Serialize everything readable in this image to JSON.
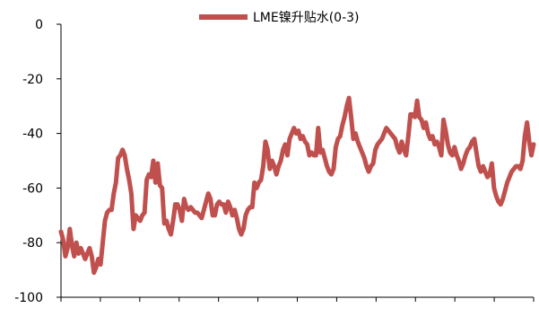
{
  "chart_data": {
    "type": "line",
    "title": "",
    "xlabel": "",
    "ylabel": "",
    "ylim": [
      -100,
      0
    ],
    "yticks": [
      0,
      -20,
      -40,
      -60,
      -80,
      -100
    ],
    "xtick_count": 13,
    "grid": false,
    "legend_position": "top-center",
    "series": [
      {
        "name": "LME镍升贴水(0-3)",
        "color": "#C0504D",
        "values": [
          -76,
          -79,
          -85,
          -82,
          -75,
          -81,
          -85,
          -80,
          -84,
          -82,
          -84,
          -86,
          -84,
          -82,
          -85,
          -91,
          -89,
          -86,
          -88,
          -80,
          -72,
          -69,
          -68,
          -68,
          -62,
          -58,
          -49,
          -48,
          -46,
          -48,
          -53,
          -57,
          -62,
          -75,
          -70,
          -71,
          -72,
          -70,
          -69,
          -57,
          -55,
          -56,
          -50,
          -58,
          -51,
          -59,
          -60,
          -73,
          -72,
          -75,
          -77,
          -72,
          -66,
          -66,
          -68,
          -72,
          -64,
          -67,
          -68,
          -67,
          -68,
          -69,
          -69,
          -70,
          -71,
          -68,
          -65,
          -62,
          -64,
          -70,
          -70,
          -66,
          -65,
          -66,
          -66,
          -69,
          -65,
          -67,
          -70,
          -68,
          -71,
          -75,
          -77,
          -75,
          -70,
          -68,
          -67,
          -67,
          -58,
          -60,
          -58,
          -57,
          -52,
          -43,
          -46,
          -53,
          -50,
          -52,
          -55,
          -52,
          -50,
          -46,
          -44,
          -48,
          -42,
          -40,
          -38,
          -40,
          -39,
          -42,
          -41,
          -43,
          -44,
          -48,
          -47,
          -48,
          -48,
          -38,
          -47,
          -46,
          -49,
          -52,
          -54,
          -55,
          -53,
          -45,
          -42,
          -41,
          -37,
          -34,
          -30,
          -27,
          -34,
          -42,
          -40,
          -43,
          -45,
          -47,
          -49,
          -52,
          -54,
          -52,
          -51,
          -46,
          -44,
          -43,
          -42,
          -40,
          -38,
          -39,
          -40,
          -41,
          -42,
          -45,
          -47,
          -43,
          -46,
          -48,
          -41,
          -33,
          -33,
          -34,
          -28,
          -34,
          -35,
          -38,
          -36,
          -40,
          -42,
          -41,
          -44,
          -43,
          -45,
          -48,
          -35,
          -39,
          -44,
          -47,
          -48,
          -45,
          -48,
          -50,
          -53,
          -51,
          -48,
          -46,
          -45,
          -43,
          -42,
          -47,
          -52,
          -54,
          -52,
          -54,
          -56,
          -55,
          -51,
          -60,
          -63,
          -65,
          -66,
          -64,
          -61,
          -58,
          -56,
          -54,
          -53,
          -52,
          -52,
          -53,
          -50,
          -41,
          -36,
          -43,
          -48,
          -44
        ]
      }
    ]
  }
}
